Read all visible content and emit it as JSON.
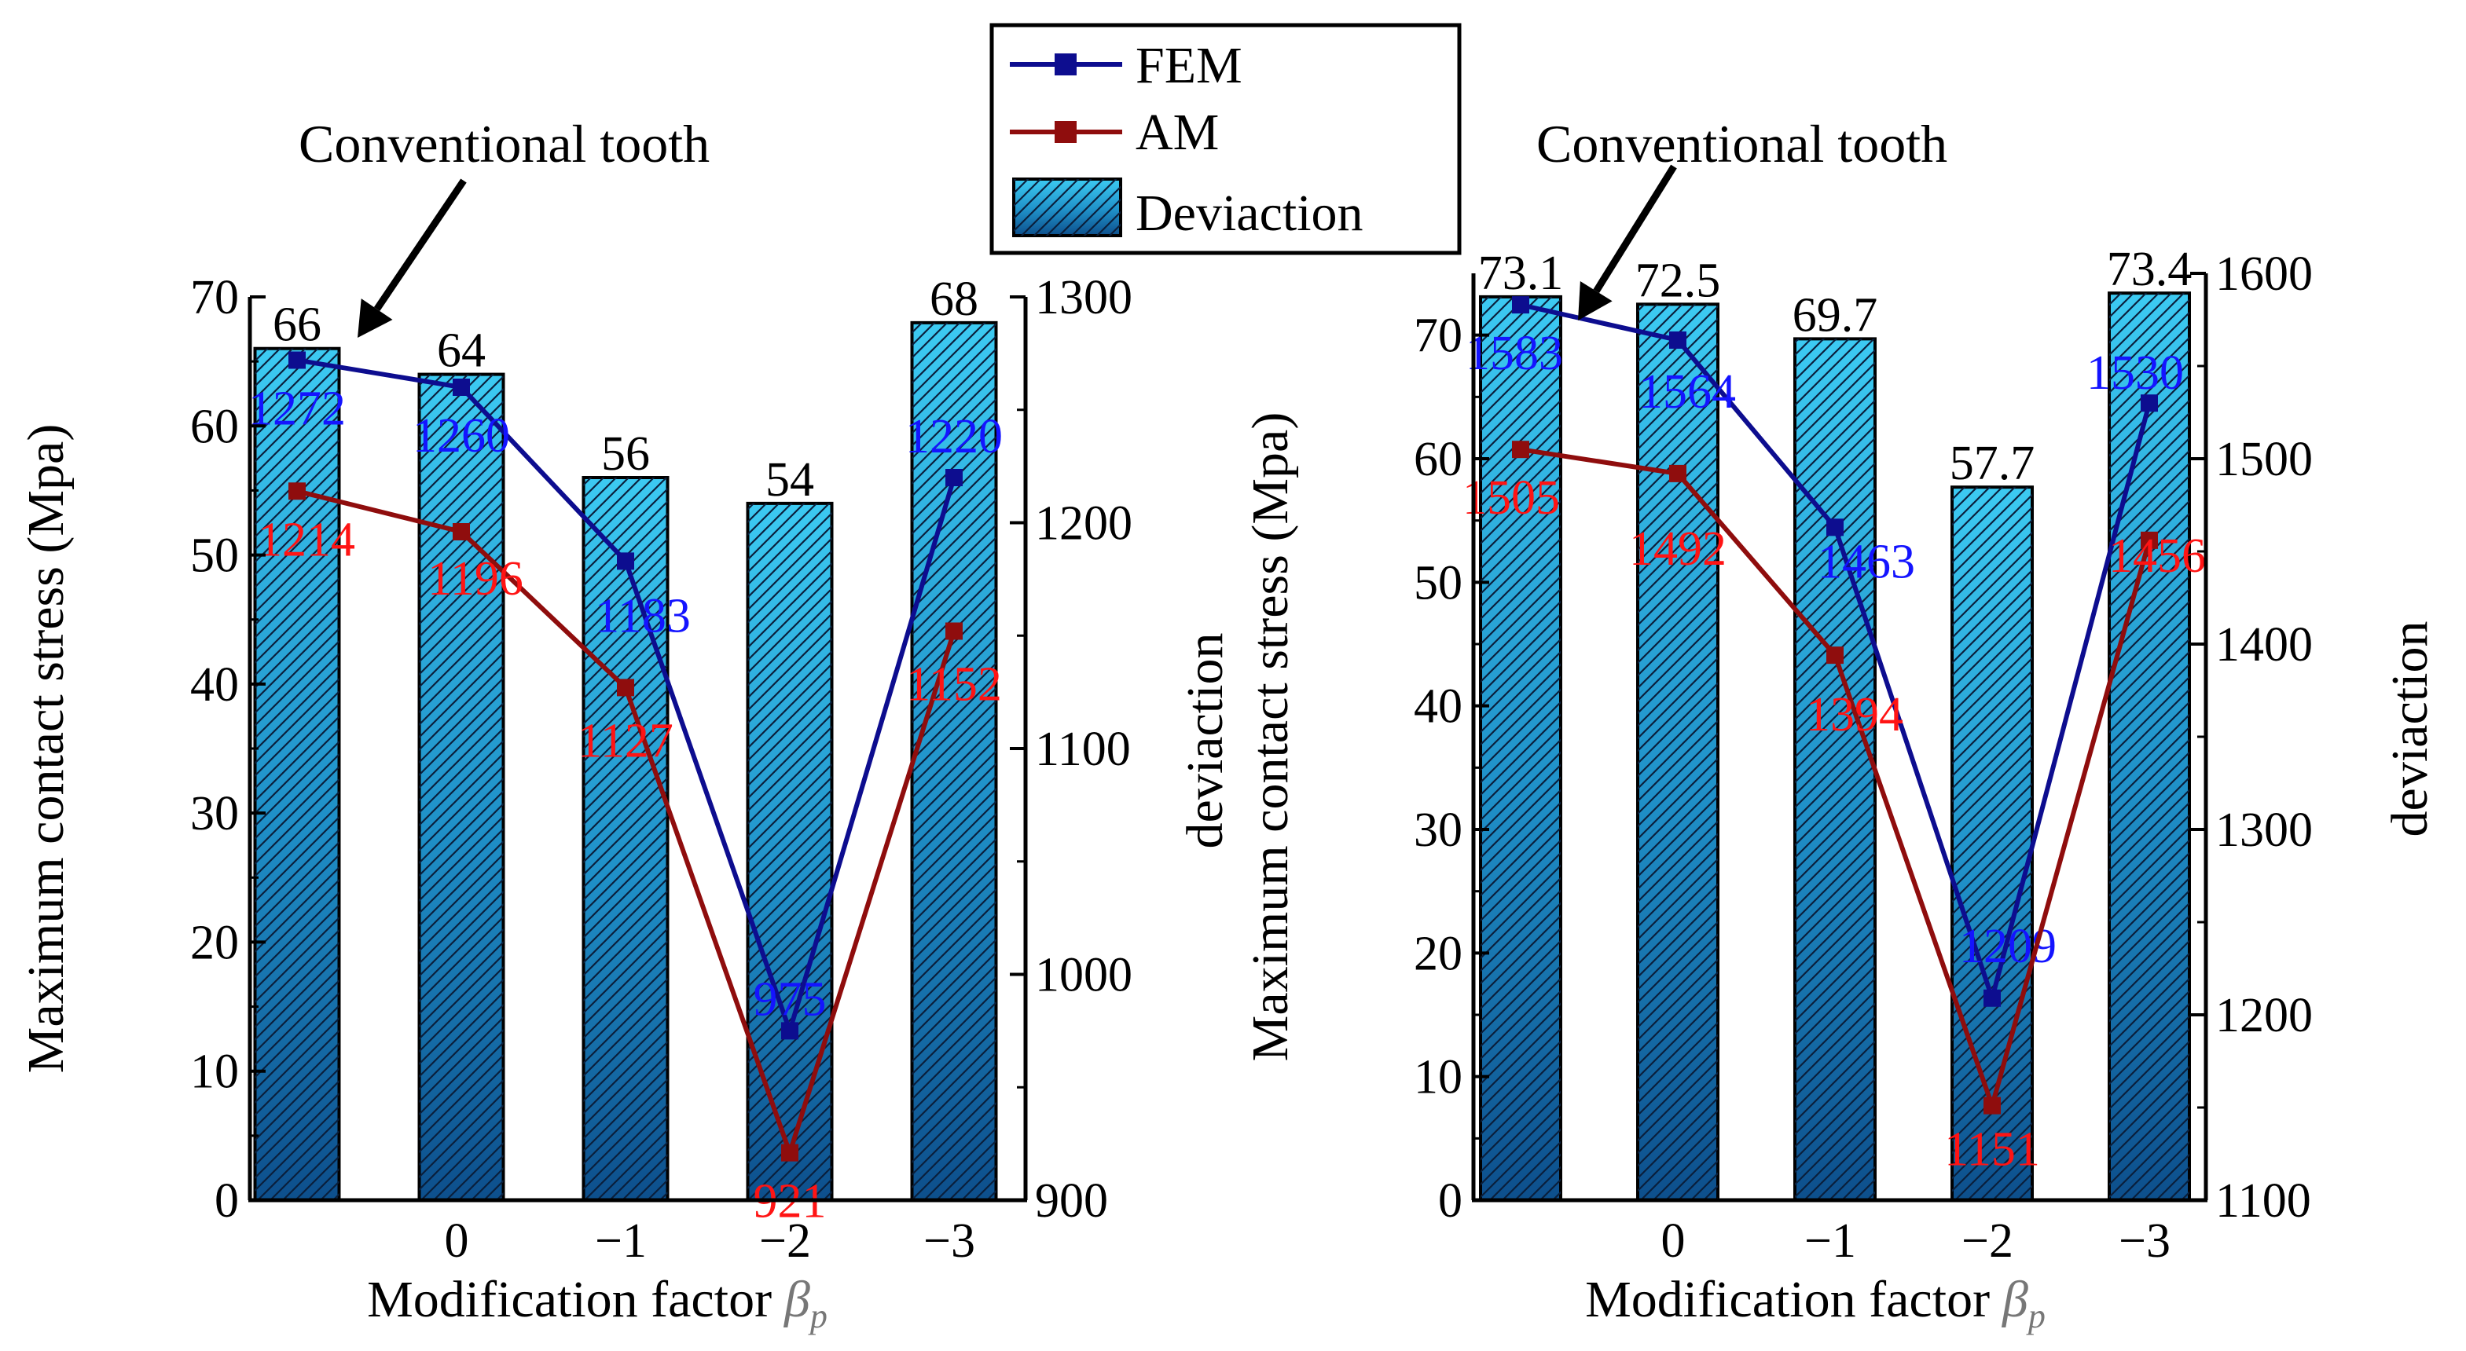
{
  "legend": {
    "entries": [
      {
        "label": "FEM",
        "kind": "line",
        "color": "#0d0d8f"
      },
      {
        "label": "AM",
        "kind": "line",
        "color": "#8f0d0d"
      },
      {
        "label": "Deviaction",
        "kind": "bar",
        "color": "#29b6e6"
      }
    ]
  },
  "chart_data": [
    {
      "type": "bar",
      "annotation": "Conventional tooth",
      "xlabel": "Modification factor",
      "xlabel_symbol": "β",
      "xlabel_subscript": "p",
      "ylabel": "Maximum contact stress  (Mpa)",
      "y2label": "deviaction",
      "categories": [
        "",
        "0",
        "−1",
        "−2",
        "−3"
      ],
      "ylim": [
        0,
        70
      ],
      "yticks": [
        0,
        10,
        20,
        30,
        40,
        50,
        60,
        70
      ],
      "y2lim": [
        900,
        1300
      ],
      "y2ticks": [
        900,
        1000,
        1100,
        1200,
        1300
      ],
      "series": [
        {
          "name": "Deviaction",
          "axis": "left",
          "kind": "bar",
          "values": [
            66,
            64,
            56,
            54,
            68
          ],
          "labels": [
            "66",
            "64",
            "56",
            "54",
            "68"
          ]
        },
        {
          "name": "FEM",
          "axis": "right",
          "kind": "line",
          "values": [
            1272,
            1260,
            1183,
            975,
            1220
          ],
          "labels": [
            "1272",
            "1260",
            "1183",
            "975",
            "1220"
          ]
        },
        {
          "name": "AM",
          "axis": "right",
          "kind": "line",
          "values": [
            1214,
            1196,
            1127,
            921,
            1152
          ],
          "labels": [
            "1214",
            "1196",
            "1127",
            "921",
            "1152"
          ]
        }
      ]
    },
    {
      "type": "bar",
      "annotation": "Conventional tooth",
      "xlabel": "Modification factor",
      "xlabel_symbol": "β",
      "xlabel_subscript": "p",
      "ylabel": "Maximum contact stress  (Mpa)",
      "y2label": "deviaction",
      "categories": [
        "",
        "0",
        "−1",
        "−2",
        "−3"
      ],
      "ylim": [
        0,
        75
      ],
      "yticks": [
        0,
        10,
        20,
        30,
        40,
        50,
        60,
        70
      ],
      "y2lim": [
        1100,
        1600
      ],
      "y2ticks": [
        1100,
        1200,
        1300,
        1400,
        1500,
        1600
      ],
      "series": [
        {
          "name": "Deviaction",
          "axis": "left",
          "kind": "bar",
          "values": [
            73.1,
            72.5,
            69.7,
            57.7,
            73.4
          ],
          "labels": [
            "73.1",
            "72.5",
            "69.7",
            "57.7",
            "73.4"
          ]
        },
        {
          "name": "FEM",
          "axis": "right",
          "kind": "line",
          "values": [
            1583,
            1564,
            1463,
            1209,
            1530
          ],
          "labels": [
            "1583",
            "1564",
            "1463",
            "1209",
            "1530"
          ]
        },
        {
          "name": "AM",
          "axis": "right",
          "kind": "line",
          "values": [
            1505,
            1492,
            1394,
            1151,
            1456
          ],
          "labels": [
            "1505",
            "1492",
            "1394",
            "1151",
            "1456"
          ]
        }
      ]
    }
  ]
}
